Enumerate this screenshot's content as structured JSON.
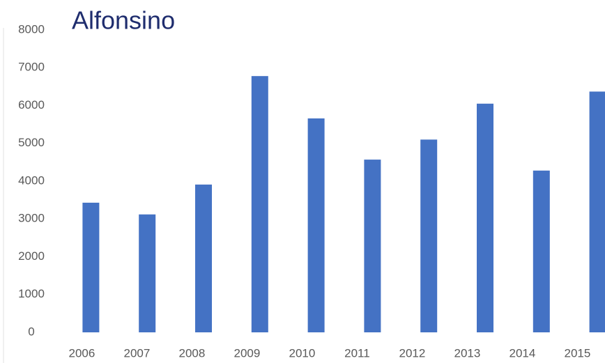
{
  "chart_data": {
    "type": "bar",
    "title": "Alfonsino",
    "categories": [
      "2006",
      "2007",
      "2008",
      "2009",
      "2010",
      "2011",
      "2012",
      "2013",
      "2014",
      "2015"
    ],
    "values": [
      3430,
      3120,
      3910,
      6780,
      5660,
      4570,
      5100,
      6050,
      4280,
      6370
    ],
    "color": "#4472c4",
    "ylim": [
      0,
      8000
    ],
    "yticks": [
      0,
      1000,
      2000,
      3000,
      4000,
      5000,
      6000,
      7000,
      8000
    ],
    "grid": false
  }
}
